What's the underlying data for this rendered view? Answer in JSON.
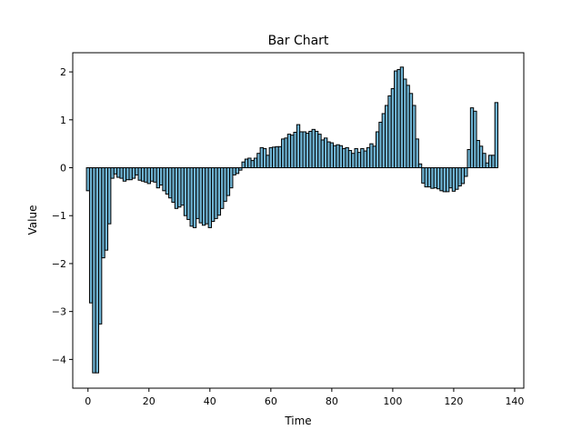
{
  "chart_data": {
    "type": "bar",
    "title": "Bar Chart",
    "xlabel": "Time",
    "ylabel": "Value",
    "x_start": 0,
    "xlim": [
      -5,
      143
    ],
    "ylim": [
      -4.6,
      2.4
    ],
    "xticks": [
      0,
      20,
      40,
      60,
      80,
      100,
      120,
      140
    ],
    "yticks": [
      -4,
      -3,
      -2,
      -1,
      0,
      1,
      2
    ],
    "bar_color": "#6fb4d4",
    "edge_color": "#000000",
    "grid": false,
    "legend": "none",
    "values": [
      -0.48,
      -2.82,
      -4.28,
      -4.28,
      -3.26,
      -1.88,
      -1.72,
      -1.17,
      -0.22,
      -0.13,
      -0.2,
      -0.22,
      -0.28,
      -0.25,
      -0.25,
      -0.22,
      -0.15,
      -0.26,
      -0.28,
      -0.3,
      -0.33,
      -0.28,
      -0.3,
      -0.42,
      -0.36,
      -0.48,
      -0.55,
      -0.63,
      -0.72,
      -0.85,
      -0.82,
      -0.78,
      -1.0,
      -1.08,
      -1.22,
      -1.25,
      -1.06,
      -1.15,
      -1.2,
      -1.17,
      -1.25,
      -1.12,
      -1.06,
      -0.99,
      -0.85,
      -0.7,
      -0.58,
      -0.42,
      -0.15,
      -0.12,
      -0.05,
      0.12,
      0.18,
      0.2,
      0.15,
      0.2,
      0.3,
      0.42,
      0.4,
      0.26,
      0.42,
      0.43,
      0.44,
      0.44,
      0.6,
      0.62,
      0.7,
      0.68,
      0.74,
      0.9,
      0.75,
      0.75,
      0.72,
      0.76,
      0.8,
      0.76,
      0.7,
      0.58,
      0.62,
      0.54,
      0.52,
      0.46,
      0.48,
      0.46,
      0.4,
      0.42,
      0.36,
      0.3,
      0.4,
      0.32,
      0.4,
      0.35,
      0.42,
      0.5,
      0.45,
      0.75,
      0.95,
      1.13,
      1.3,
      1.5,
      1.65,
      2.02,
      2.05,
      2.1,
      1.85,
      1.72,
      1.55,
      1.3,
      0.6,
      0.08,
      -0.32,
      -0.4,
      -0.4,
      -0.43,
      -0.42,
      -0.44,
      -0.48,
      -0.5,
      -0.5,
      -0.42,
      -0.49,
      -0.45,
      -0.38,
      -0.33,
      -0.18,
      0.38,
      1.25,
      1.18,
      0.57,
      0.45,
      0.3,
      0.1,
      0.26,
      0.26,
      1.36
    ]
  }
}
